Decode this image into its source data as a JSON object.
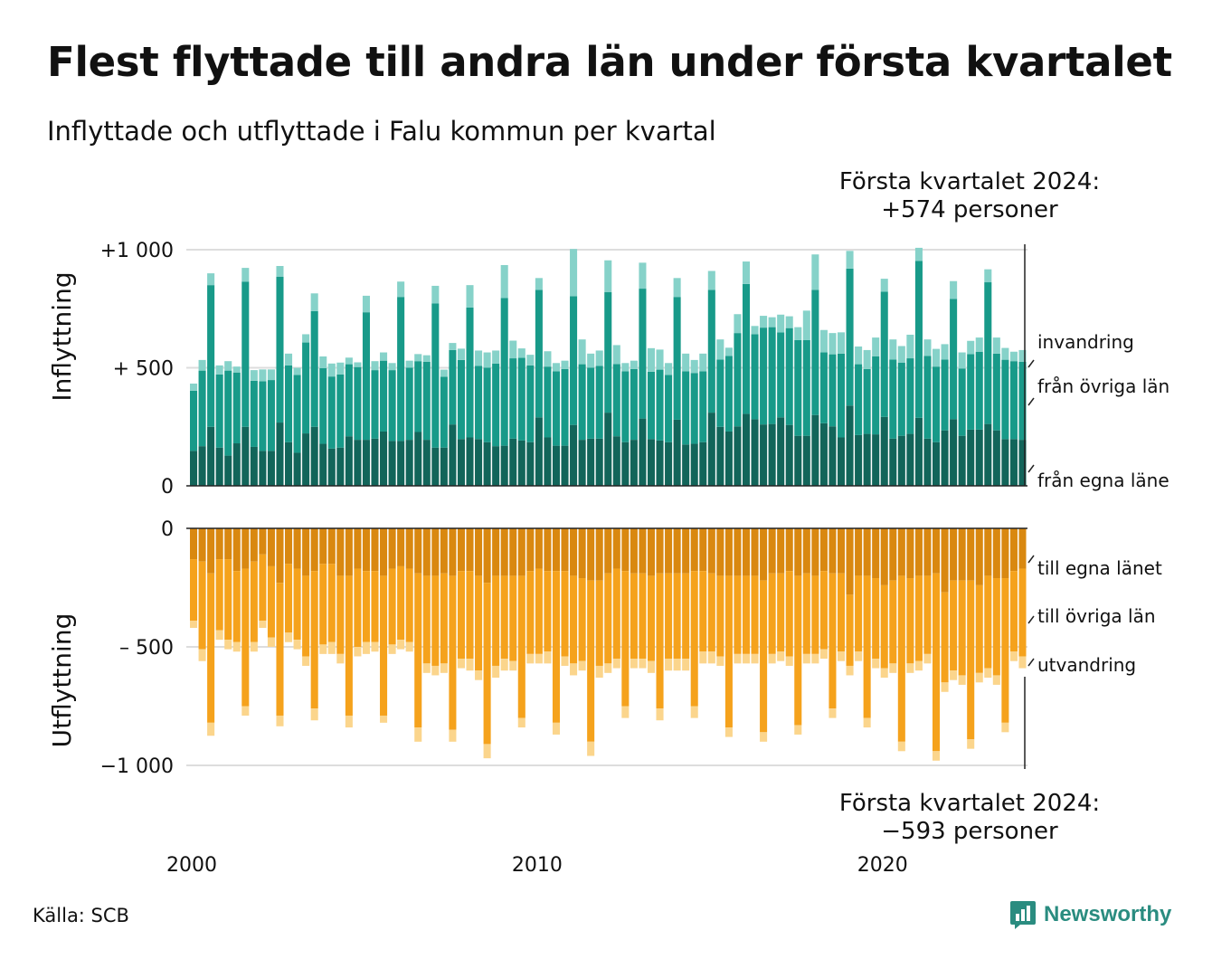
{
  "title": "Flest flyttade till andra län under första kvartalet",
  "subtitle": "Inflyttade och utflyttade i Falu kommun per kvartal",
  "annotation_top_line1": "Första kvartalet 2024:",
  "annotation_top_line2": "+574 personer",
  "annotation_bottom_line1": "Första kvartalet 2024:",
  "annotation_bottom_line2": "−593 personer",
  "source": "Källa: SCB",
  "brand": "Newsworthy",
  "colors": {
    "in_egna": "#12655a",
    "in_ovriga": "#189a89",
    "in_invandring": "#86d2c9",
    "out_egna": "#d98810",
    "out_ovriga": "#f5a21c",
    "out_utvandring": "#fbd58c",
    "grid": "#dddddd",
    "axis": "#222222",
    "brand": "#2a8c80"
  },
  "chart_data": {
    "type": "bar",
    "stacked": true,
    "x_start": "2000 Q1",
    "x_end": "2024 Q1",
    "x_ticks": [
      "2000",
      "2010",
      "2020"
    ],
    "panels": [
      {
        "name": "Inflyttning",
        "ylabel": "Inflyttning",
        "ylim": [
          0,
          1000
        ],
        "y_ticks": [
          0,
          500,
          1000
        ],
        "y_tick_labels": [
          "0",
          "+  500",
          "+1 000"
        ],
        "series": [
          {
            "name": "från egna läne",
            "values": [
              148,
              168,
              250,
              162,
              128,
              180,
              250,
              165,
              148,
              148,
              268,
              185,
              140,
              222,
              250,
              178,
              158,
              162,
              210,
              195,
              195,
              200,
              230,
              190,
              190,
              195,
              228,
              195,
              162,
              162,
              260,
              198,
              205,
              198,
              185,
              168,
              170,
              200,
              192,
              185,
              290,
              205,
              170,
              170,
              258,
              195,
              200,
              200,
              310,
              210,
              185,
              195,
              285,
              198,
              192,
              185,
              280,
              175,
              178,
              185,
              310,
              250,
              230,
              252,
              305,
              282,
              260,
              262,
              290,
              258,
              212,
              212,
              300,
              265,
              252,
              205,
              340,
              215,
              220,
              218,
              292,
              200,
              212,
              220,
              288,
              200,
              185,
              235,
              282,
              212,
              238,
              238,
              262,
              235,
              198,
              198,
              195
            ]
          },
          {
            "name": "från övriga län",
            "values": [
              255,
              320,
              600,
              310,
              360,
              300,
              615,
              280,
              295,
              300,
              618,
              325,
              330,
              385,
              490,
              320,
              305,
              310,
              305,
              308,
              540,
              290,
              300,
              300,
              610,
              305,
              300,
              330,
              610,
              300,
              315,
              335,
              550,
              310,
              315,
              350,
              625,
              340,
              350,
              325,
              540,
              300,
              315,
              325,
              545,
              320,
              300,
              308,
              510,
              306,
              300,
              300,
              550,
              285,
              300,
              285,
              520,
              310,
              300,
              300,
              520,
              285,
              320,
              395,
              550,
              360,
              410,
              410,
              360,
              410,
              405,
              405,
              530,
              300,
              305,
              355,
              580,
              300,
              275,
              330,
              530,
              335,
              310,
              320,
              665,
              350,
              320,
              300,
              510,
              285,
              320,
              330,
              600,
              325,
              336,
              330,
              330
            ]
          },
          {
            "name": "invandring",
            "values": [
              30,
              45,
              50,
              38,
              40,
              25,
              58,
              45,
              50,
              45,
              45,
              50,
              30,
              35,
              75,
              50,
              55,
              50,
              28,
              20,
              70,
              38,
              35,
              30,
              65,
              30,
              30,
              28,
              75,
              30,
              30,
              48,
              95,
              65,
              65,
              55,
              140,
              75,
              40,
              45,
              50,
              65,
              35,
              35,
              200,
              105,
              60,
              65,
              135,
              80,
              35,
              35,
              110,
              100,
              85,
              50,
              80,
              75,
              55,
              75,
              80,
              85,
              35,
              80,
              95,
              35,
              50,
              42,
              75,
              50,
              55,
              125,
              150,
              95,
              90,
              90,
              75,
              75,
              80,
              80,
              55,
              85,
              70,
              100,
              55,
              70,
              75,
              65,
              75,
              68,
              56,
              60,
              55,
              68,
              50,
              40,
              50
            ]
          }
        ]
      },
      {
        "name": "Utflyttning",
        "ylabel": "Utflyttning",
        "ylim": [
          -1000,
          0
        ],
        "y_ticks": [
          0,
          -500,
          -1000
        ],
        "y_tick_labels": [
          "0",
          "–  500",
          "−1 000"
        ],
        "series": [
          {
            "name": "till egna länet",
            "values": [
              -130,
              -140,
              -190,
              -130,
              -130,
              -180,
              -170,
              -140,
              -110,
              -160,
              -230,
              -150,
              -170,
              -200,
              -180,
              -150,
              -150,
              -200,
              -200,
              -170,
              -180,
              -180,
              -200,
              -170,
              -160,
              -170,
              -190,
              -200,
              -200,
              -190,
              -200,
              -180,
              -180,
              -200,
              -230,
              -200,
              -200,
              -200,
              -200,
              -180,
              -170,
              -180,
              -180,
              -180,
              -200,
              -210,
              -220,
              -220,
              -190,
              -170,
              -180,
              -190,
              -190,
              -200,
              -190,
              -190,
              -190,
              -190,
              -180,
              -180,
              -190,
              -200,
              -200,
              -200,
              -200,
              -200,
              -220,
              -190,
              -190,
              -180,
              -200,
              -190,
              -200,
              -180,
              -190,
              -190,
              -280,
              -200,
              -200,
              -210,
              -240,
              -220,
              -200,
              -210,
              -200,
              -200,
              -190,
              -270,
              -220,
              -220,
              -220,
              -240,
              -200,
              -210,
              -210,
              -180,
              -170
            ]
          },
          {
            "name": "till övriga län",
            "values": [
              -260,
              -370,
              -630,
              -300,
              -340,
              -300,
              -580,
              -340,
              -280,
              -300,
              -560,
              -290,
              -300,
              -340,
              -580,
              -340,
              -330,
              -330,
              -590,
              -330,
              -300,
              -300,
              -590,
              -320,
              -310,
              -310,
              -650,
              -370,
              -380,
              -380,
              -650,
              -370,
              -370,
              -400,
              -680,
              -380,
              -350,
              -360,
              -600,
              -350,
              -360,
              -340,
              -640,
              -360,
              -370,
              -350,
              -680,
              -360,
              -380,
              -380,
              -570,
              -360,
              -360,
              -360,
              -570,
              -360,
              -360,
              -360,
              -570,
              -340,
              -330,
              -340,
              -640,
              -330,
              -330,
              -330,
              -640,
              -340,
              -330,
              -360,
              -630,
              -340,
              -330,
              -330,
              -570,
              -330,
              -300,
              -320,
              -600,
              -340,
              -350,
              -350,
              -700,
              -360,
              -360,
              -330,
              -750,
              -380,
              -380,
              -400,
              -670,
              -370,
              -390,
              -410,
              -610,
              -340,
              -370
            ]
          },
          {
            "name": "utvandring",
            "values": [
              -30,
              -50,
              -55,
              -40,
              -40,
              -40,
              -40,
              -40,
              -30,
              -40,
              -45,
              -40,
              -40,
              -40,
              -50,
              -40,
              -50,
              -40,
              -50,
              -40,
              -50,
              -40,
              -30,
              -40,
              -40,
              -40,
              -60,
              -40,
              -40,
              -40,
              -50,
              -40,
              -50,
              -40,
              -60,
              -50,
              -50,
              -40,
              -40,
              -40,
              -40,
              -50,
              -50,
              -40,
              -50,
              -40,
              -60,
              -50,
              -40,
              -40,
              -50,
              -40,
              -40,
              -50,
              -50,
              -50,
              -50,
              -50,
              -50,
              -50,
              -50,
              -40,
              -40,
              -40,
              -40,
              -40,
              -40,
              -40,
              -40,
              -40,
              -40,
              -40,
              -40,
              -40,
              -40,
              -40,
              -40,
              -40,
              -40,
              -40,
              -40,
              -40,
              -40,
              -40,
              -40,
              -40,
              -40,
              -40,
              -40,
              -40,
              -40,
              -40,
              -40,
              -40,
              -40,
              -40,
              -50
            ]
          }
        ]
      }
    ]
  }
}
